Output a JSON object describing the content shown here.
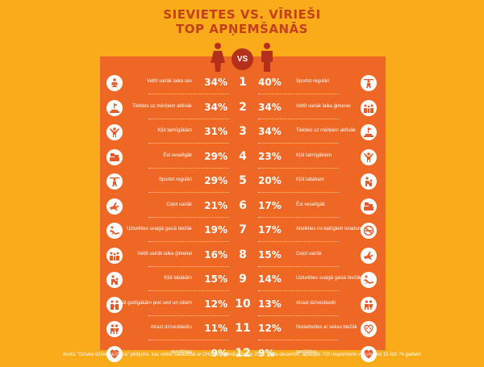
{
  "title": {
    "line1": "SIEVIETES VS. VĪRIEŠI",
    "line2": "TOP APŅEMŠANĀS"
  },
  "vs_label": "VS",
  "colors": {
    "background": "#f9ab1a",
    "panel": "#ef6724",
    "accent": "#c4401c"
  },
  "rows": [
    {
      "rank": "1",
      "women_label": "Veltīt vairāk laika sev",
      "women_pct": "34%",
      "men_pct": "40%",
      "men_label": "Sportot regulāri",
      "women_icon": "meditation-icon",
      "men_icon": "weightlifting-icon"
    },
    {
      "rank": "2",
      "women_label": "Tiekties uz mērķiem aktīvāk",
      "women_pct": "34%",
      "men_pct": "34%",
      "men_label": "Veltīt vairāk laika ģimenei",
      "women_icon": "goal-flag-icon",
      "men_icon": "family-icon"
    },
    {
      "rank": "3",
      "women_label": "Kļūt laimīgākām",
      "women_pct": "31%",
      "men_pct": "34%",
      "men_label": "Tiekties uz mērķiem aktīvāk",
      "women_icon": "happy-person-icon",
      "men_icon": "goal-flag-icon"
    },
    {
      "rank": "4",
      "women_label": "Ēst veselīgāk",
      "women_pct": "29%",
      "men_pct": "23%",
      "men_label": "Kļūt laimīgākiem",
      "women_icon": "food-icon",
      "men_icon": "happy-person-icon"
    },
    {
      "rank": "5",
      "women_label": "Sportot regulāri",
      "women_pct": "29%",
      "men_pct": "20%",
      "men_label": "Kļūt labākam",
      "women_icon": "weightlifting-icon",
      "men_icon": "helping-icon"
    },
    {
      "rank": "6",
      "women_label": "Ceļot vairāk",
      "women_pct": "21%",
      "men_pct": "17%",
      "men_label": "Ēst veselīgāk",
      "women_icon": "airplane-icon",
      "men_icon": "food-icon"
    },
    {
      "rank": "7",
      "women_label": "Uzturēties svaigā gaisā biežāk",
      "women_pct": "19%",
      "men_pct": "17%",
      "men_label": "Atteikties no kaitīgiem ieradumiem",
      "women_icon": "lounger-icon",
      "men_icon": "no-smoking-icon"
    },
    {
      "rank": "8",
      "women_label": "Veltīt vairāk laika ģimenei",
      "women_pct": "16%",
      "men_pct": "15%",
      "men_label": "Ceļot vairāk",
      "women_icon": "family-icon",
      "men_icon": "airplane-icon"
    },
    {
      "rank": "9",
      "women_label": "Kļūt labākām",
      "women_pct": "15%",
      "men_pct": "14%",
      "men_label": "Uzturēties svaigā gaisā biežāk",
      "women_icon": "helping-icon",
      "men_icon": "lounger-icon"
    },
    {
      "rank": "10",
      "women_label": "Kļūt godīgākām pret sevi un citiem",
      "women_pct": "12%",
      "men_pct": "13%",
      "men_label": "Atrast dzīvesbiedri",
      "women_icon": "honesty-icon",
      "men_icon": "couple-icon"
    },
    {
      "rank": "11",
      "women_label": "Atrast dzīvesbiedru",
      "women_pct": "11%",
      "men_pct": "12%",
      "men_label": "Nodarboties ar seksu biežāk",
      "women_icon": "couple-icon",
      "men_icon": "intimacy-icon"
    },
    {
      "rank": "12",
      "women_label": "Iemīlēties",
      "women_pct": "9%",
      "men_pct": "9%",
      "men_label": "Iemīlēties",
      "women_icon": "heart-icon",
      "men_icon": "heart-icon"
    }
  ],
  "source": "Avots: \"Dzīves dzīvesaicīšana\" pētījums, kas veikts sadarbībā ar Omnicom Media Group 2014. gada decembrī, aptaujāti 703 respondenti vecumā no 15 līdz 74 gadiem"
}
